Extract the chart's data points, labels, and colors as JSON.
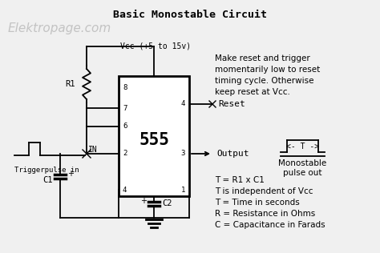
{
  "title": "Basic Monostable Circuit",
  "watermark": "Elektropage.com",
  "bg_color": "#f0f0f0",
  "title_color": "#000000",
  "watermark_color": "#bbbbbb",
  "chip_label": "555",
  "vcc_label": "Vcc (+5 to 15v)",
  "r1_label": "R1",
  "c1_label": "C1",
  "c2_label": "C2",
  "in_label": "IN",
  "trigger_label": "Triggerpulse in",
  "reset_label": "Reset",
  "output_label": "Output",
  "note_text": "Make reset and trigger\nmomentarily low to reset\ntiming cycle. Otherwise\nkeep reset at Vcc.",
  "pulse_label": "<- T ->",
  "mono_label": "Monostable\npulse out",
  "formula_lines": [
    "T = R1 x C1",
    "T is independent of Vcc",
    "T = Time in seconds",
    "R = Resistance in Ohms",
    "C = Capacitance in Farads"
  ]
}
